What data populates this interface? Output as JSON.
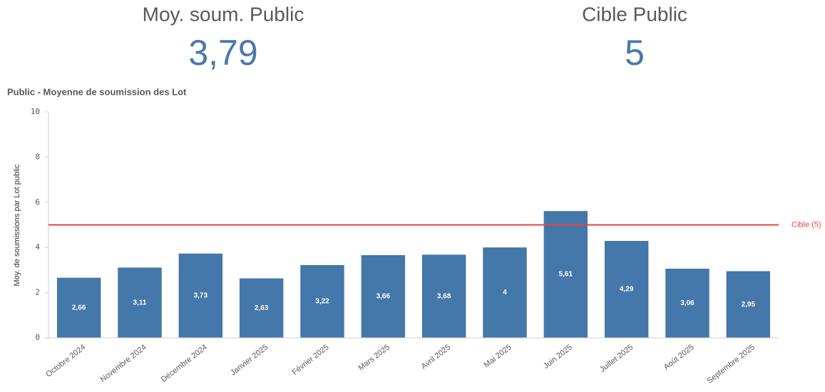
{
  "kpis": [
    {
      "label": "Moy. soum. Public",
      "value": "3,79"
    },
    {
      "label": "Cible Public",
      "value": "5"
    }
  ],
  "chart_data": {
    "type": "bar",
    "title": "Public - Moyenne de soumission des Lot",
    "y_label": "Moy. de soumissions par Lot public",
    "categories": [
      "Octobre 2024",
      "Novembre 2024",
      "Décembre 2024",
      "Janvier 2025",
      "Février 2025",
      "Mars 2025",
      "Avril 2025",
      "Mai 2025",
      "Juin 2025",
      "Juillet 2025",
      "Août 2025",
      "Septembre 2025"
    ],
    "values": [
      2.66,
      3.11,
      3.73,
      2.63,
      3.22,
      3.66,
      3.68,
      4,
      5.61,
      4.29,
      3.06,
      2.95
    ],
    "value_labels": [
      "2,66",
      "3,11",
      "3,73",
      "2,63",
      "3,22",
      "3,66",
      "3,68",
      "4",
      "5,61",
      "4,29",
      "3,06",
      "2,95"
    ],
    "color": "#4477aa",
    "ylim": [
      0,
      10
    ],
    "yticks": [
      0,
      2,
      4,
      6,
      8,
      10
    ],
    "reference_line": {
      "value": 5,
      "label": "Cible (5)",
      "color": "#e8423f"
    }
  }
}
